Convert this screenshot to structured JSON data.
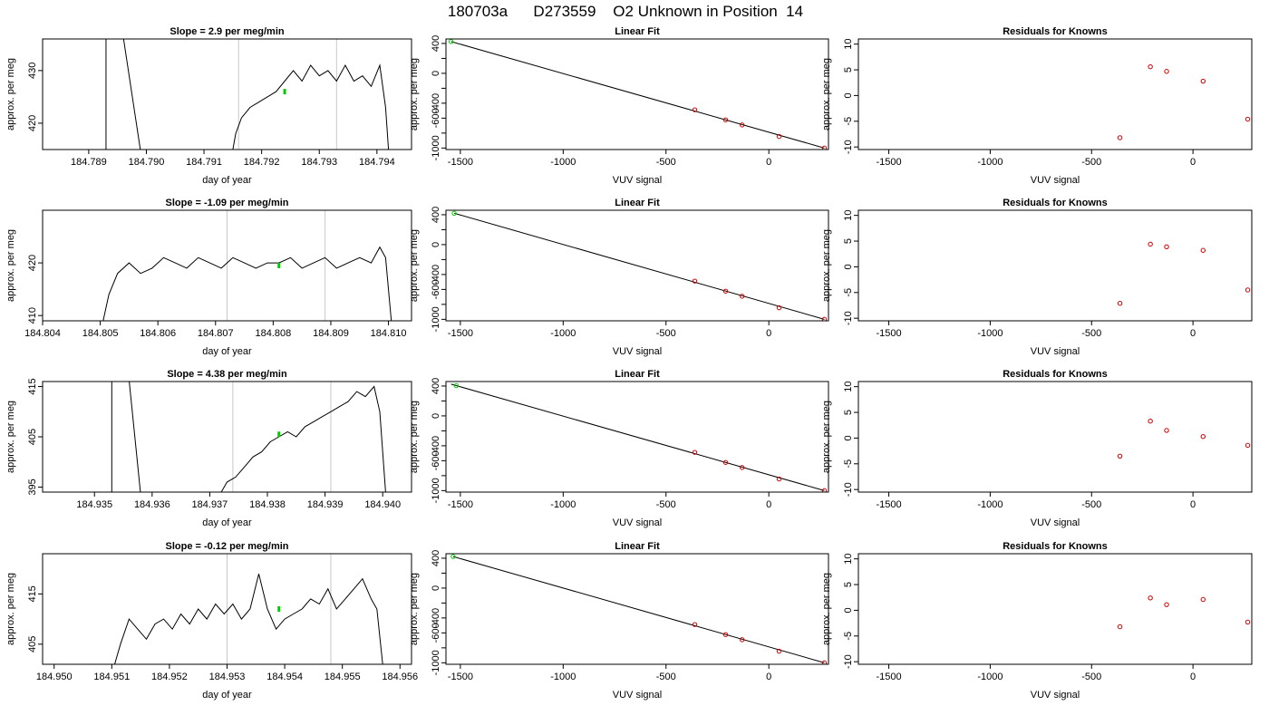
{
  "figure": {
    "title": "180703a      D273559    O2 Unknown in Position  14"
  },
  "chart_data": [
    {
      "type": "line",
      "title": "Slope =  2.9  per meg/min",
      "xlabel": "day of year",
      "ylabel": "approx. per meg",
      "xlim": [
        184.7882,
        184.7946
      ],
      "ylim": [
        415.0,
        436.0
      ],
      "xticks": [
        184.789,
        184.79,
        184.791,
        184.792,
        184.793,
        184.794
      ],
      "xtick_labels": [
        "184.789",
        "184.790",
        "184.791",
        "184.792",
        "184.793",
        "184.794"
      ],
      "yticks": [
        420,
        430
      ],
      "ytick_labels": [
        "420",
        "430"
      ],
      "vlines": [
        184.7916,
        184.7933
      ],
      "spike": {
        "x_up": 184.7893,
        "x_down_start": 184.7896,
        "x_down_end": 184.7899
      },
      "series": [
        {
          "x": [
            184.7915,
            184.79155,
            184.79165,
            184.7918,
            184.79195,
            184.7921,
            184.79225,
            184.7924,
            184.79255,
            184.7927,
            184.79285,
            184.793,
            184.79315,
            184.7933,
            184.79345,
            184.7936,
            184.79375,
            184.7939,
            184.79405,
            184.79415,
            184.7942
          ],
          "y": [
            415,
            418,
            421,
            423,
            424,
            425,
            426,
            428,
            430,
            428,
            431,
            429,
            430,
            428,
            431,
            428,
            429,
            427,
            431,
            423,
            415
          ]
        }
      ],
      "marker": {
        "x": 184.7924,
        "y": 426,
        "color": "#00cc00"
      }
    },
    {
      "type": "line",
      "title": "Slope =  -1.09  per meg/min",
      "xlabel": "day of year",
      "ylabel": "approx. per meg",
      "xlim": [
        184.804,
        184.8104
      ],
      "ylim": [
        409.0,
        430.0
      ],
      "xticks": [
        184.804,
        184.805,
        184.806,
        184.807,
        184.808,
        184.809,
        184.81
      ],
      "xtick_labels": [
        "184.804",
        "184.805",
        "184.806",
        "184.807",
        "184.808",
        "184.809",
        "184.810"
      ],
      "yticks": [
        410,
        420
      ],
      "ytick_labels": [
        "410",
        "420"
      ],
      "vlines": [
        184.8072,
        184.8089
      ],
      "series": [
        {
          "x": [
            184.80505,
            184.80515,
            184.8053,
            184.8055,
            184.8057,
            184.8059,
            184.8061,
            184.8063,
            184.8065,
            184.8067,
            184.8069,
            184.8071,
            184.8073,
            184.8075,
            184.8077,
            184.8079,
            184.8081,
            184.8083,
            184.8085,
            184.8087,
            184.8089,
            184.8091,
            184.8093,
            184.8095,
            184.8097,
            184.80985,
            184.80995,
            184.81005
          ],
          "y": [
            409,
            414,
            418,
            420,
            418,
            419,
            421,
            420,
            419,
            421,
            420,
            419,
            421,
            420,
            419,
            420,
            420,
            421,
            419,
            420,
            421,
            419,
            420,
            421,
            420,
            423,
            421,
            409
          ]
        }
      ],
      "marker": {
        "x": 184.8081,
        "y": 419.5,
        "color": "#00cc00"
      }
    },
    {
      "type": "line",
      "title": "Slope =  4.38  per meg/min",
      "xlabel": "day of year",
      "ylabel": "approx. per meg",
      "xlim": [
        184.9341,
        184.9405
      ],
      "ylim": [
        394.0,
        416.0
      ],
      "xticks": [
        184.935,
        184.936,
        184.937,
        184.938,
        184.939,
        184.94
      ],
      "xtick_labels": [
        "184.935",
        "184.936",
        "184.937",
        "184.938",
        "184.939",
        "184.940"
      ],
      "yticks": [
        395,
        405,
        415
      ],
      "ytick_labels": [
        "395",
        "405",
        "415"
      ],
      "vlines": [
        184.9374,
        184.9391
      ],
      "spike": {
        "x_up": 184.9353,
        "x_down_start": 184.9356,
        "x_down_end": 184.9358
      },
      "series": [
        {
          "x": [
            184.9372,
            184.9373,
            184.93745,
            184.9376,
            184.93775,
            184.9379,
            184.93805,
            184.9382,
            184.93835,
            184.9385,
            184.93865,
            184.9388,
            184.93895,
            184.9391,
            184.93925,
            184.9394,
            184.93955,
            184.9397,
            184.93985,
            184.93995,
            184.94005
          ],
          "y": [
            394,
            396,
            397,
            399,
            401,
            402,
            404,
            405,
            406,
            405,
            407,
            408,
            409,
            410,
            411,
            412,
            414,
            413,
            415,
            410,
            394
          ]
        }
      ],
      "marker": {
        "x": 184.9382,
        "y": 405.5,
        "color": "#00cc00"
      }
    },
    {
      "type": "line",
      "title": "Slope =  -0.12  per meg/min",
      "xlabel": "day of year",
      "ylabel": "approx. per meg",
      "xlim": [
        184.9498,
        184.9562
      ],
      "ylim": [
        401.0,
        423.0
      ],
      "xticks": [
        184.95,
        184.951,
        184.952,
        184.953,
        184.954,
        184.955,
        184.956
      ],
      "xtick_labels": [
        "184.950",
        "184.951",
        "184.952",
        "184.953",
        "184.954",
        "184.955",
        "184.956"
      ],
      "yticks": [
        405,
        415
      ],
      "ytick_labels": [
        "405",
        "415"
      ],
      "vlines": [
        184.953,
        184.9548
      ],
      "series": [
        {
          "x": [
            184.95105,
            184.95115,
            184.9513,
            184.95145,
            184.9516,
            184.95175,
            184.9519,
            184.95205,
            184.9522,
            184.95235,
            184.9525,
            184.95265,
            184.9528,
            184.95295,
            184.9531,
            184.95325,
            184.9534,
            184.95355,
            184.9537,
            184.95385,
            184.954,
            184.95415,
            184.9543,
            184.95445,
            184.9546,
            184.95475,
            184.9549,
            184.95505,
            184.9552,
            184.95535,
            184.9555,
            184.9556,
            184.9557
          ],
          "y": [
            401,
            405,
            410,
            408,
            406,
            409,
            410,
            408,
            411,
            409,
            412,
            410,
            413,
            411,
            413,
            410,
            412,
            419,
            412,
            408,
            410,
            411,
            412,
            414,
            413,
            416,
            412,
            414,
            416,
            418,
            414,
            412,
            401
          ]
        }
      ],
      "marker": {
        "x": 184.9539,
        "y": 412,
        "color": "#00cc00"
      }
    },
    {
      "type": "scatter",
      "title": "Linear Fit",
      "xlabel": "VUV signal",
      "ylabel": "approx. per meg",
      "xlim": [
        -1570,
        290
      ],
      "ylim": [
        -1020,
        460
      ],
      "xticks": [
        -1500,
        -1000,
        -500,
        0
      ],
      "xtick_labels": [
        "-1500",
        "-1000",
        "-500",
        "0"
      ],
      "yticks": [
        -1000,
        -800,
        -600,
        -400,
        -200,
        0,
        200,
        400
      ],
      "ytick_labels": [
        "-1000",
        "",
        "-600",
        "-400",
        "",
        "0",
        "",
        "400"
      ],
      "fit_line": {
        "x": [
          -1545,
          270
        ],
        "y": [
          425,
          -1000
        ]
      },
      "knowns": {
        "x": [
          -360,
          -210,
          -130,
          50,
          270
        ],
        "y": [
          -488,
          -623,
          -691,
          -845,
          -1000
        ],
        "color": "#cc0000"
      },
      "unknown": {
        "x": -1545,
        "y": 425,
        "color": "#00cc00"
      }
    },
    {
      "type": "scatter",
      "title": "Linear Fit",
      "xlabel": "VUV signal",
      "ylabel": "approx. per meg",
      "xlim": [
        -1570,
        290
      ],
      "ylim": [
        -1020,
        460
      ],
      "xticks": [
        -1500,
        -1000,
        -500,
        0
      ],
      "xtick_labels": [
        "-1500",
        "-1000",
        "-500",
        "0"
      ],
      "yticks": [
        -1000,
        -800,
        -600,
        -400,
        -200,
        0,
        200,
        400
      ],
      "ytick_labels": [
        "-1000",
        "",
        "-600",
        "-400",
        "",
        "0",
        "",
        "400"
      ],
      "fit_line": {
        "x": [
          -1530,
          270
        ],
        "y": [
          420,
          -1000
        ]
      },
      "knowns": {
        "x": [
          -360,
          -210,
          -130,
          50,
          270
        ],
        "y": [
          -488,
          -623,
          -691,
          -845,
          -1000
        ],
        "color": "#cc0000"
      },
      "unknown": {
        "x": -1530,
        "y": 420,
        "color": "#00cc00"
      }
    },
    {
      "type": "scatter",
      "title": "Linear Fit",
      "xlabel": "VUV signal",
      "ylabel": "approx. per meg",
      "xlim": [
        -1570,
        290
      ],
      "ylim": [
        -1020,
        460
      ],
      "xticks": [
        -1500,
        -1000,
        -500,
        0
      ],
      "xtick_labels": [
        "-1500",
        "-1000",
        "-500",
        "0"
      ],
      "yticks": [
        -1000,
        -800,
        -600,
        -400,
        -200,
        0,
        200,
        400
      ],
      "ytick_labels": [
        "-1000",
        "",
        "-600",
        "-400",
        "",
        "0",
        "",
        "400"
      ],
      "fit_line": {
        "x": [
          -1545,
          270
        ],
        "y": [
          425,
          -1000
        ]
      },
      "knowns": {
        "x": [
          -360,
          -210,
          -130,
          50,
          270
        ],
        "y": [
          -488,
          -623,
          -691,
          -845,
          -1000
        ],
        "color": "#cc0000"
      },
      "unknown": {
        "x": -1520,
        "y": 405,
        "color": "#00cc00"
      }
    },
    {
      "type": "scatter",
      "title": "Linear Fit",
      "xlabel": "VUV signal",
      "ylabel": "approx. per meg",
      "xlim": [
        -1570,
        290
      ],
      "ylim": [
        -1020,
        460
      ],
      "xticks": [
        -1500,
        -1000,
        -500,
        0
      ],
      "xtick_labels": [
        "-1500",
        "-1000",
        "-500",
        "0"
      ],
      "yticks": [
        -1000,
        -800,
        -600,
        -400,
        -200,
        0,
        200,
        400
      ],
      "ytick_labels": [
        "-1000",
        "",
        "-600",
        "-400",
        "",
        "0",
        "",
        "400"
      ],
      "fit_line": {
        "x": [
          -1535,
          270
        ],
        "y": [
          422,
          -1000
        ]
      },
      "knowns": {
        "x": [
          -360,
          -210,
          -130,
          50,
          270
        ],
        "y": [
          -488,
          -623,
          -691,
          -845,
          -1000
        ],
        "color": "#cc0000"
      },
      "unknown": {
        "x": -1535,
        "y": 422,
        "color": "#00cc00"
      }
    },
    {
      "type": "scatter",
      "title": "Residuals for Knowns",
      "xlabel": "VUV signal",
      "ylabel": "approx. per meg",
      "xlim": [
        -1650,
        290
      ],
      "ylim": [
        -10.5,
        11
      ],
      "xticks": [
        -1500,
        -1000,
        -500,
        0
      ],
      "xtick_labels": [
        "-1500",
        "-1000",
        "-500",
        "0"
      ],
      "yticks": [
        -10,
        -5,
        0,
        5,
        10
      ],
      "ytick_labels": [
        "-10",
        "-5",
        "0",
        "5",
        "10"
      ],
      "knowns": {
        "x": [
          -360,
          -210,
          -130,
          50,
          270
        ],
        "y": [
          -8.2,
          5.6,
          4.7,
          2.8,
          -4.6
        ],
        "color": "#cc0000"
      }
    },
    {
      "type": "scatter",
      "title": "Residuals for Knowns",
      "xlabel": "VUV signal",
      "ylabel": "approx. per meg",
      "xlim": [
        -1650,
        290
      ],
      "ylim": [
        -10.5,
        11
      ],
      "xticks": [
        -1500,
        -1000,
        -500,
        0
      ],
      "xtick_labels": [
        "-1500",
        "-1000",
        "-500",
        "0"
      ],
      "yticks": [
        -10,
        -5,
        0,
        5,
        10
      ],
      "ytick_labels": [
        "-10",
        "-5",
        "0",
        "5",
        "10"
      ],
      "knowns": {
        "x": [
          -360,
          -210,
          -130,
          50,
          270
        ],
        "y": [
          -7.1,
          4.4,
          3.9,
          3.2,
          -4.5
        ],
        "color": "#cc0000"
      }
    },
    {
      "type": "scatter",
      "title": "Residuals for Knowns",
      "xlabel": "VUV signal",
      "ylabel": "approx. per meg",
      "xlim": [
        -1650,
        290
      ],
      "ylim": [
        -10.5,
        11
      ],
      "xticks": [
        -1500,
        -1000,
        -500,
        0
      ],
      "xtick_labels": [
        "-1500",
        "-1000",
        "-500",
        "0"
      ],
      "yticks": [
        -10,
        -5,
        0,
        5,
        10
      ],
      "ytick_labels": [
        "-10",
        "-5",
        "0",
        "5",
        "10"
      ],
      "knowns": {
        "x": [
          -360,
          -210,
          -130,
          50,
          270
        ],
        "y": [
          -3.5,
          3.3,
          1.5,
          0.3,
          -1.4
        ],
        "color": "#cc0000"
      }
    },
    {
      "type": "scatter",
      "title": "Residuals for Knowns",
      "xlabel": "VUV signal",
      "ylabel": "approx. per meg",
      "xlim": [
        -1650,
        290
      ],
      "ylim": [
        -10.5,
        11
      ],
      "xticks": [
        -1500,
        -1000,
        -500,
        0
      ],
      "xtick_labels": [
        "-1500",
        "-1000",
        "-500",
        "0"
      ],
      "yticks": [
        -10,
        -5,
        0,
        5,
        10
      ],
      "ytick_labels": [
        "-10",
        "-5",
        "0",
        "5",
        "10"
      ],
      "knowns": {
        "x": [
          -360,
          -210,
          -130,
          50,
          270
        ],
        "y": [
          -3.2,
          2.4,
          1.1,
          2.1,
          -2.3
        ],
        "color": "#cc0000"
      }
    }
  ]
}
